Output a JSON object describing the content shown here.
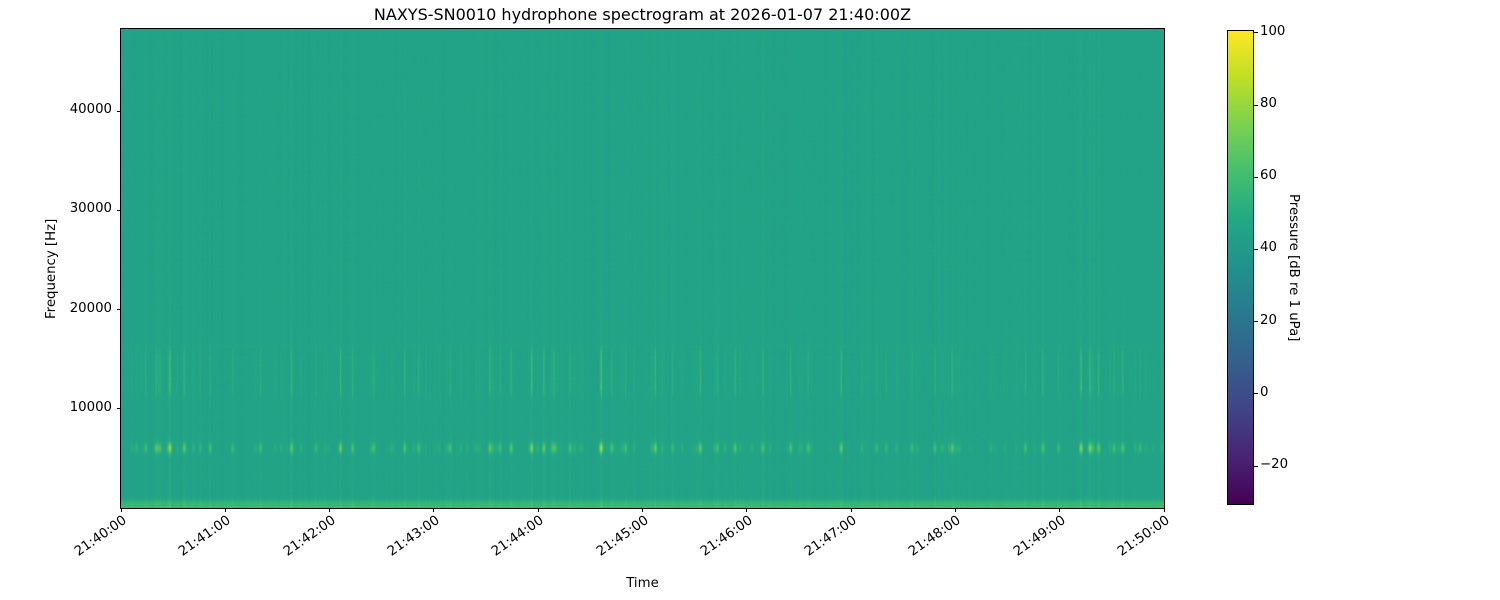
{
  "chart_data": {
    "type": "heatmap",
    "subtype": "spectrogram",
    "title": "NAXYS-SN0010 hydrophone spectrogram at 2026-01-07 21:40:00Z",
    "xlabel": "Time",
    "ylabel": "Frequency [Hz]",
    "x_tick_labels": [
      "21:40:00",
      "21:41:00",
      "21:42:00",
      "21:43:00",
      "21:44:00",
      "21:45:00",
      "21:46:00",
      "21:47:00",
      "21:48:00",
      "21:49:00",
      "21:50:00"
    ],
    "x_range_seconds": [
      0,
      600
    ],
    "y_ticks_hz": [
      10000,
      20000,
      30000,
      40000
    ],
    "y_tick_labels": [
      "10000",
      "20000",
      "30000",
      "40000"
    ],
    "ylim_hz": [
      0,
      48300
    ],
    "grid": false,
    "colorbar": {
      "label": "Pressure [dB re 1 uPa]",
      "tick_values": [
        100,
        80,
        60,
        40,
        20,
        0,
        -20
      ],
      "tick_labels": [
        "100",
        "80",
        "60",
        "40",
        "20",
        "0",
        "−20"
      ],
      "vmin": -30.5,
      "vmax": 100.5,
      "colormap": "viridis",
      "stops": [
        [
          68,
          1,
          84
        ],
        [
          72,
          36,
          117
        ],
        [
          65,
          68,
          135
        ],
        [
          53,
          95,
          141
        ],
        [
          42,
          120,
          142
        ],
        [
          33,
          145,
          140
        ],
        [
          34,
          168,
          132
        ],
        [
          68,
          190,
          112
        ],
        [
          122,
          209,
          81
        ],
        [
          189,
          223,
          38
        ],
        [
          253,
          231,
          37
        ]
      ]
    },
    "background": {
      "base_db": 45,
      "low_band_boost_db": 12.5,
      "low_band_edge_hz": 750,
      "low_band_edge_width_hz": 180,
      "notch_center_hz": 1000,
      "notch_depth_db": 2,
      "notch_sigma_hz": 250,
      "click_band_center_hz": 6000,
      "click_band_peak_db": 30,
      "mid_band_centers_hz": [
        12100,
        13900,
        15400
      ],
      "mid_band_peak_db": 14,
      "broadband_line_db": 3.2
    },
    "events": [
      [
        14,
        0.45
      ],
      [
        20,
        0.65
      ],
      [
        28,
        0.9
      ],
      [
        36,
        0.5
      ],
      [
        51,
        0.55
      ],
      [
        64,
        0.4
      ],
      [
        80,
        0.5
      ],
      [
        98,
        0.6
      ],
      [
        112,
        0.4
      ],
      [
        126,
        0.85
      ],
      [
        133,
        0.55
      ],
      [
        145,
        0.45
      ],
      [
        163,
        0.6
      ],
      [
        171,
        0.5
      ],
      [
        189,
        0.4
      ],
      [
        212,
        0.7
      ],
      [
        224,
        0.5
      ],
      [
        236,
        0.95
      ],
      [
        243,
        0.75
      ],
      [
        249,
        0.55
      ],
      [
        258,
        0.5
      ],
      [
        276,
        0.9
      ],
      [
        282,
        0.55
      ],
      [
        290,
        0.45
      ],
      [
        307,
        0.55
      ],
      [
        317,
        0.4
      ],
      [
        333,
        0.6
      ],
      [
        343,
        0.45
      ],
      [
        353,
        0.65
      ],
      [
        369,
        0.55
      ],
      [
        385,
        0.6
      ],
      [
        395,
        0.5
      ],
      [
        414,
        0.45
      ],
      [
        426,
        0.3
      ],
      [
        440,
        0.35
      ],
      [
        455,
        0.3
      ],
      [
        468,
        0.4
      ],
      [
        478,
        0.35
      ],
      [
        500,
        0.3
      ],
      [
        520,
        0.5
      ],
      [
        530,
        0.55
      ],
      [
        539,
        0.4
      ],
      [
        552,
        1.0
      ],
      [
        557,
        0.7
      ],
      [
        562,
        0.6
      ],
      [
        571,
        0.5
      ],
      [
        576,
        0.65
      ],
      [
        586,
        0.45
      ]
    ],
    "render_seed": 20260107
  }
}
